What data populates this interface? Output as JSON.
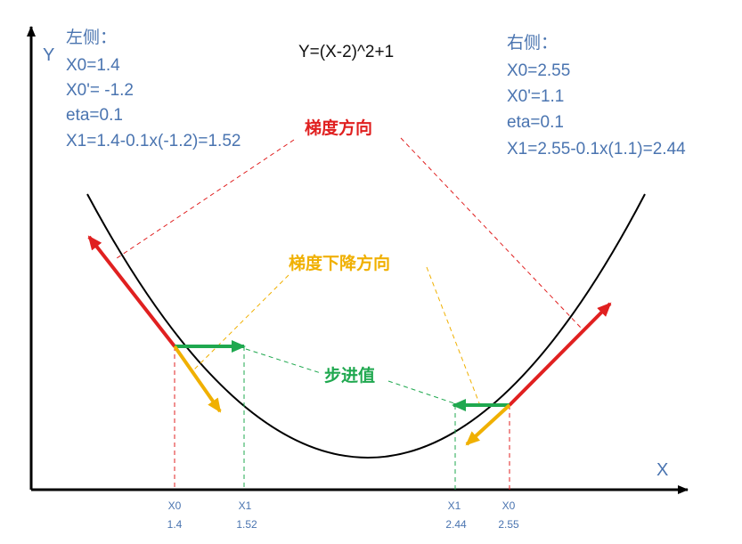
{
  "title": "Y=(X-2)^2+1",
  "axes": {
    "x_label": "X",
    "y_label": "Y"
  },
  "left_panel": {
    "heading": "左侧：",
    "lines": [
      "X0=1.4",
      "X0'= -1.2",
      "eta=0.1",
      "X1=1.4-0.1x(-1.2)=1.52"
    ]
  },
  "right_panel": {
    "heading": "右侧：",
    "lines": [
      "X0=2.55",
      "X0'=1.1",
      "eta=0.1",
      "X1=2.55-0.1x(1.1)=2.44"
    ]
  },
  "annotations": {
    "gradient": "梯度方向",
    "descent": "梯度下降方向",
    "step": "步进值"
  },
  "ticks": [
    {
      "name": "X0",
      "value": "1.4"
    },
    {
      "name": "X1",
      "value": "1.52"
    },
    {
      "name": "X1",
      "value": "2.44"
    },
    {
      "name": "X0",
      "value": "2.55"
    }
  ],
  "colors": {
    "gradient": "#e02020",
    "descent": "#f0b000",
    "step": "#1fa84f",
    "text": "#4a74b0",
    "curve": "#000000"
  }
}
